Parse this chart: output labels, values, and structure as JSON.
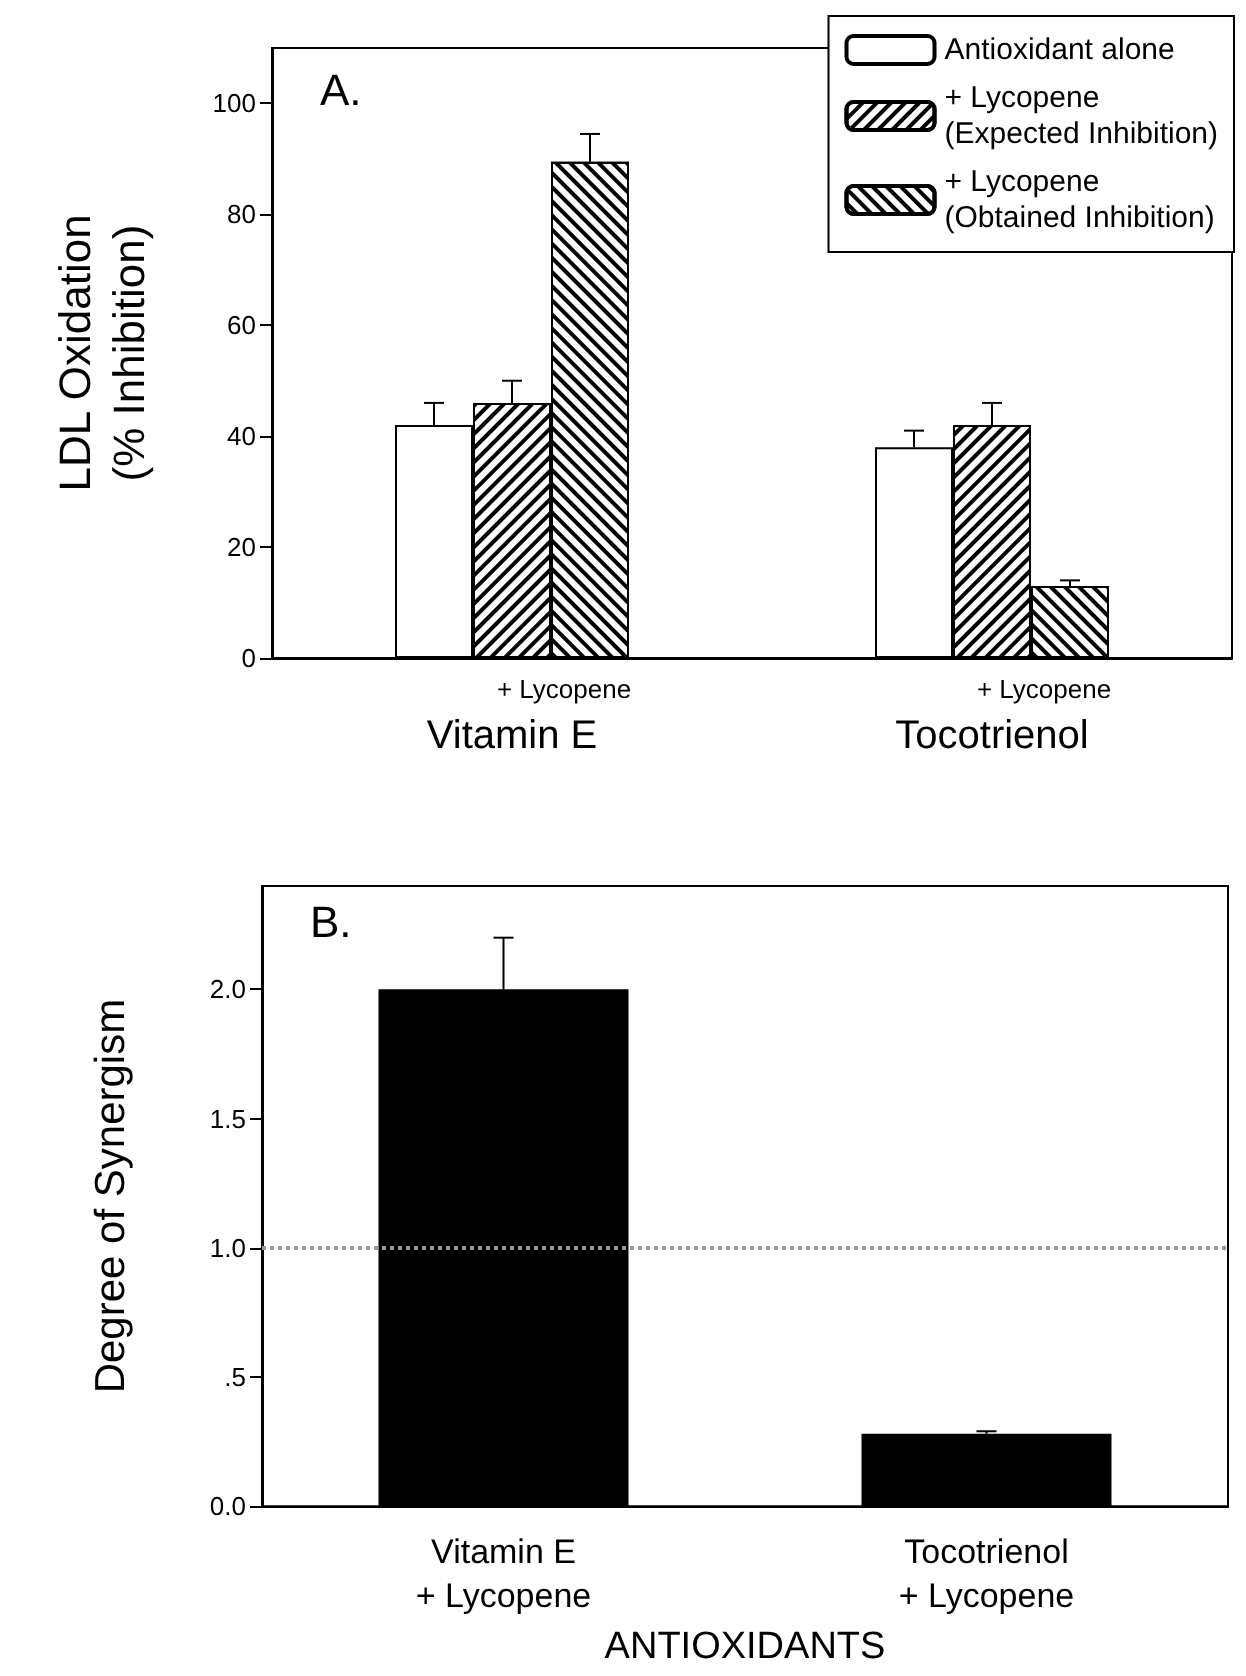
{
  "chart_data": [
    {
      "type": "bar",
      "ylabel": "LDL Oxidation\n(% Inhibition)",
      "categories": [
        "Vitamin E",
        "Tocotrienol"
      ],
      "series": [
        {
          "name": "Antioxidant alone",
          "color": "#ffffff",
          "values": [
            42,
            38
          ],
          "errors": [
            [
              42,
              46
            ],
            [
              38,
              41
            ]
          ]
        },
        {
          "name": "+ Lycopene\n(Expected Inhibition)",
          "color": "#000000",
          "values": [
            46,
            42
          ],
          "errors": [
            [
              46,
              50
            ],
            [
              42,
              46
            ]
          ]
        },
        {
          "name": "+ Lycopene\n(Obtained Inhibition)",
          "color": "#000000",
          "values": [
            89.5,
            13
          ],
          "errors": [
            [
              89.5,
              94.5
            ],
            [
              13,
              14
            ]
          ]
        }
      ],
      "ylim": [
        0,
        110
      ],
      "yticks": [
        0,
        20,
        40,
        60,
        80,
        100
      ],
      "grid": false,
      "legend": "top right",
      "annotations": [
        "A.",
        "+ Lycopene",
        "+ Lycopene"
      ]
    },
    {
      "type": "bar",
      "ylabel": "Degree of Synergism",
      "xlabel": "ANTIOXIDANTS",
      "categories": [
        "Vitamin E\n+ Lycopene",
        "Tocotrienol\n+ Lycopene"
      ],
      "series": [
        {
          "color": "#000000",
          "values": [
            2.0,
            0.28
          ],
          "errors": [
            [
              2.0,
              2.2
            ],
            [
              0.28,
              0.29
            ]
          ]
        }
      ],
      "ylim": [
        0,
        2.4
      ],
      "yticks": [
        {
          "value": 0,
          "label": "0.0"
        },
        {
          "value": 0.5,
          "label": ".5"
        },
        {
          "value": 1,
          "label": "1.0"
        },
        {
          "value": 1.5,
          "label": "1.5"
        },
        {
          "value": 2,
          "label": "2.0"
        }
      ],
      "grid": false,
      "legend": false,
      "ref_lines": [
        {
          "axis": "y",
          "value": 1.0,
          "color": "#999999",
          "line_style": "dotted"
        }
      ],
      "annotations": [
        "B."
      ]
    }
  ]
}
